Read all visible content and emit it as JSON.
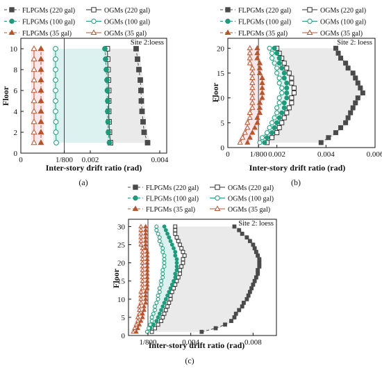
{
  "colors": {
    "flpgm_220": "#4a4a4a",
    "flpgm_100": "#1f9a7a",
    "flpgm_35": "#b5562f",
    "ogm_220": "#333333",
    "ogm_100": "#1f9a7a",
    "ogm_35": "#b5562f",
    "band_220": "#d9d9d9",
    "band_100": "#bfe8e3",
    "band_35": "#f6d3d9",
    "limit_line": "#444444"
  },
  "chart_data": [
    {
      "panel_label": "(a)",
      "type": "line",
      "site_label": "Site 2:loess",
      "xlabel": "Inter-story drift ratio (rad)",
      "ylabel": "Floor",
      "xlim": [
        0,
        0.0042
      ],
      "ylim": [
        0,
        11
      ],
      "xticks": [
        {
          "v": 0,
          "t": "0"
        },
        {
          "v": 0.00125,
          "t": "1/800"
        },
        {
          "v": 0.002,
          "t": "0.002"
        },
        {
          "v": 0.004,
          "t": "0.004"
        }
      ],
      "yticks": [
        0,
        2,
        4,
        6,
        8,
        10
      ],
      "limit_value": 0.00125,
      "limit_label": "1/800",
      "legend": [
        "FLPGMs (220 gal)",
        "OGMs (220 gal)",
        "FLPGMs (100 gal)",
        "OGMs (100 gal)",
        "FLPGMs (35 gal)",
        "OGMs (35 gal)"
      ],
      "floors": [
        1,
        2,
        3,
        4,
        5,
        6,
        7,
        8,
        9,
        10
      ],
      "series": [
        {
          "name": "FLPGMs (220 gal)",
          "key": "flpgm_220",
          "marker": "square",
          "filled": true,
          "dashed": true,
          "values": [
            0.00365,
            0.00355,
            0.00352,
            0.00349,
            0.00347,
            0.00346,
            0.00344,
            0.0034,
            0.00336,
            0.00332
          ]
        },
        {
          "name": "OGMs (220 gal)",
          "key": "ogm_220",
          "marker": "square",
          "filled": false,
          "dashed": false,
          "values": [
            0.00258,
            0.00255,
            0.00254,
            0.00253,
            0.00253,
            0.00253,
            0.00252,
            0.00251,
            0.0025,
            0.00249
          ]
        },
        {
          "name": "FLPGMs (100 gal)",
          "key": "flpgm_100",
          "marker": "circle",
          "filled": true,
          "dashed": true,
          "values": [
            0.00255,
            0.00252,
            0.00251,
            0.0025,
            0.0025,
            0.00249,
            0.00248,
            0.00246,
            0.00244,
            0.00242
          ]
        },
        {
          "name": "OGMs (100 gal)",
          "key": "ogm_100",
          "marker": "circle",
          "filled": false,
          "dashed": false,
          "values": [
            0.00102,
            0.00101,
            0.00101,
            0.001,
            0.001,
            0.001,
            0.001,
            0.001,
            0.001,
            0.001
          ]
        },
        {
          "name": "FLPGMs (35 gal)",
          "key": "flpgm_35",
          "marker": "triangle",
          "filled": true,
          "dashed": true,
          "values": [
            0.00058,
            0.00058,
            0.00058,
            0.00058,
            0.00058,
            0.00058,
            0.00058,
            0.00058,
            0.00058,
            0.00058
          ]
        },
        {
          "name": "OGMs (35 gal)",
          "key": "ogm_35",
          "marker": "triangle",
          "filled": false,
          "dashed": false,
          "values": [
            0.00038,
            0.00038,
            0.00038,
            0.00038,
            0.00038,
            0.00038,
            0.00038,
            0.00038,
            0.00038,
            0.00038
          ]
        }
      ]
    },
    {
      "panel_label": "(b)",
      "type": "line",
      "site_label": "Site 2: loess",
      "xlabel": "Inter-story drift ratio (rad)",
      "ylabel": "Floor",
      "xlim": [
        0,
        0.006
      ],
      "ylim": [
        0,
        22
      ],
      "xticks": [
        {
          "v": 0,
          "t": "0"
        },
        {
          "v": 0.00125,
          "t": "1/800"
        },
        {
          "v": 0.002,
          "t": "0.002"
        },
        {
          "v": 0.004,
          "t": "0.004"
        },
        {
          "v": 0.006,
          "t": "0.006"
        }
      ],
      "yticks": [
        0,
        5,
        10,
        15,
        20
      ],
      "limit_value": 0.00125,
      "limit_label": "1/800",
      "legend": [
        "FLPGMs (220 gal)",
        "OGMs (220 gal)",
        "FLPGMs (100 gal)",
        "OGMs (100 gal)",
        "FLPGMs (35 gal)",
        "OGMs (35 gal)"
      ],
      "floors": [
        1,
        2,
        3,
        4,
        5,
        6,
        7,
        8,
        9,
        10,
        11,
        12,
        13,
        14,
        15,
        16,
        17,
        18,
        19,
        20
      ],
      "series": [
        {
          "name": "FLPGMs (220 gal)",
          "key": "flpgm_220",
          "marker": "square",
          "filled": true,
          "dashed": true,
          "values": [
            0.0038,
            0.0041,
            0.0044,
            0.0046,
            0.0048,
            0.0049,
            0.005,
            0.0051,
            0.0052,
            0.0053,
            0.0055,
            0.0054,
            0.0053,
            0.0052,
            0.0051,
            0.0049,
            0.0048,
            0.0046,
            0.0045,
            0.0044
          ]
        },
        {
          "name": "OGMs (220 gal)",
          "key": "ogm_220",
          "marker": "square",
          "filled": false,
          "dashed": false,
          "values": [
            0.0016,
            0.0018,
            0.002,
            0.0021,
            0.0022,
            0.0023,
            0.0024,
            0.0025,
            0.0026,
            0.0026,
            0.0027,
            0.0027,
            0.0026,
            0.0026,
            0.0025,
            0.0024,
            0.0023,
            0.0022,
            0.0021,
            0.002
          ]
        },
        {
          "name": "FLPGMs (100 gal)",
          "key": "flpgm_100",
          "marker": "circle",
          "filled": true,
          "dashed": true,
          "values": [
            0.0015,
            0.0016,
            0.0018,
            0.0019,
            0.002,
            0.0021,
            0.0022,
            0.0023,
            0.0023,
            0.0024,
            0.0024,
            0.0024,
            0.0024,
            0.0023,
            0.0023,
            0.0022,
            0.0021,
            0.0021,
            0.002,
            0.0019
          ]
        },
        {
          "name": "OGMs (100 gal)",
          "key": "ogm_100",
          "marker": "circle",
          "filled": false,
          "dashed": false,
          "values": [
            0.0013,
            0.0014,
            0.0016,
            0.0017,
            0.0018,
            0.0019,
            0.002,
            0.002,
            0.0021,
            0.0021,
            0.0022,
            0.0022,
            0.0021,
            0.0021,
            0.002,
            0.002,
            0.0019,
            0.0018,
            0.0018,
            0.0017
          ]
        },
        {
          "name": "FLPGMs (35 gal)",
          "key": "flpgm_35",
          "marker": "triangle",
          "filled": true,
          "dashed": true,
          "values": [
            0.0008,
            0.0009,
            0.001,
            0.0011,
            0.0012,
            0.0012,
            0.0013,
            0.0013,
            0.0013,
            0.0014,
            0.0014,
            0.0014,
            0.0014,
            0.0014,
            0.0013,
            0.0013,
            0.0013,
            0.0012,
            0.0012,
            0.0012
          ]
        },
        {
          "name": "OGMs (35 gal)",
          "key": "ogm_35",
          "marker": "triangle",
          "filled": false,
          "dashed": false,
          "values": [
            0.0005,
            0.0006,
            0.0007,
            0.0008,
            0.0008,
            0.0009,
            0.0009,
            0.001,
            0.001,
            0.001,
            0.001,
            0.001,
            0.001,
            0.001,
            0.001,
            0.001,
            0.0009,
            0.0009,
            0.0009,
            0.0009
          ]
        }
      ]
    },
    {
      "panel_label": "(c)",
      "type": "line",
      "site_label": "Site 2: loess",
      "xlabel": "Inter-story drift ratio (rad)",
      "ylabel": "Floor",
      "xlim": [
        0,
        0.0095
      ],
      "ylim": [
        0,
        32
      ],
      "xticks": [
        {
          "v": 0.00125,
          "t": "1/800"
        },
        {
          "v": 0.004,
          "t": "0.004"
        },
        {
          "v": 0.008,
          "t": "0.008"
        }
      ],
      "yticks": [
        0,
        5,
        10,
        15,
        20,
        25,
        30
      ],
      "limit_value": 0.00125,
      "limit_label": "1/800",
      "legend": [
        "FLPGMs (220 gal)",
        "OGMs (220 gal)",
        "FLPGMs (100 gal)",
        "OGMs (100 gal)",
        "FLPGMs (35 gal)",
        "OGMs (35 gal)"
      ],
      "floors": [
        1,
        2,
        3,
        4,
        5,
        6,
        7,
        8,
        9,
        10,
        11,
        12,
        13,
        14,
        15,
        16,
        17,
        18,
        19,
        20,
        21,
        22,
        23,
        24,
        25,
        26,
        27,
        28,
        29,
        30
      ],
      "series": [
        {
          "name": "FLPGMs (220 gal)",
          "key": "flpgm_220",
          "marker": "square",
          "filled": true,
          "dashed": true,
          "values": [
            0.0047,
            0.0056,
            0.0062,
            0.0066,
            0.0068,
            0.0069,
            0.0071,
            0.0073,
            0.0074,
            0.0076,
            0.0077,
            0.0078,
            0.0079,
            0.008,
            0.0081,
            0.0082,
            0.0083,
            0.0083,
            0.0084,
            0.0084,
            0.0084,
            0.0083,
            0.0082,
            0.0081,
            0.008,
            0.0078,
            0.0076,
            0.0073,
            0.0071,
            0.0068
          ]
        },
        {
          "name": "OGMs (220 gal)",
          "key": "ogm_220",
          "marker": "square",
          "filled": false,
          "dashed": false,
          "values": [
            0.0015,
            0.0017,
            0.0019,
            0.0021,
            0.0022,
            0.0023,
            0.0024,
            0.0025,
            0.0026,
            0.0027,
            0.0027,
            0.0028,
            0.0029,
            0.003,
            0.0031,
            0.0032,
            0.0033,
            0.0033,
            0.0034,
            0.0035,
            0.0035,
            0.0036,
            0.0035,
            0.0034,
            0.0033,
            0.0032,
            0.0031,
            0.003,
            0.003,
            0.003
          ]
        },
        {
          "name": "FLPGMs (100 gal)",
          "key": "flpgm_100",
          "marker": "circle",
          "filled": true,
          "dashed": true,
          "values": [
            0.0012,
            0.0014,
            0.0016,
            0.0018,
            0.0019,
            0.002,
            0.0021,
            0.0022,
            0.0023,
            0.0024,
            0.0025,
            0.0026,
            0.0027,
            0.0028,
            0.0029,
            0.003,
            0.003,
            0.0031,
            0.0031,
            0.0031,
            0.0031,
            0.003,
            0.003,
            0.0029,
            0.0028,
            0.0027,
            0.0026,
            0.0025,
            0.0024,
            0.0023
          ]
        },
        {
          "name": "OGMs (100 gal)",
          "key": "ogm_100",
          "marker": "circle",
          "filled": false,
          "dashed": false,
          "values": [
            0.0012,
            0.0013,
            0.0014,
            0.0015,
            0.0015,
            0.0016,
            0.0017,
            0.0017,
            0.0018,
            0.0019,
            0.0019,
            0.002,
            0.002,
            0.0021,
            0.0021,
            0.0022,
            0.0022,
            0.0022,
            0.0023,
            0.0023,
            0.0023,
            0.0023,
            0.0022,
            0.0022,
            0.0021,
            0.002,
            0.002,
            0.0019,
            0.0018,
            0.0018
          ]
        },
        {
          "name": "FLPGMs (35 gal)",
          "key": "flpgm_35",
          "marker": "triangle",
          "filled": true,
          "dashed": true,
          "values": [
            0.0005,
            0.0006,
            0.0007,
            0.0008,
            0.0009,
            0.0009,
            0.001,
            0.001,
            0.0011,
            0.0011,
            0.0011,
            0.0011,
            0.0012,
            0.0012,
            0.0012,
            0.0012,
            0.0012,
            0.0012,
            0.0012,
            0.0012,
            0.0012,
            0.0012,
            0.0012,
            0.0011,
            0.0011,
            0.0011,
            0.0011,
            0.0011,
            0.0011,
            0.0011
          ]
        },
        {
          "name": "OGMs (35 gal)",
          "key": "ogm_35",
          "marker": "triangle",
          "filled": false,
          "dashed": false,
          "values": [
            0.0003,
            0.0004,
            0.0005,
            0.0006,
            0.0006,
            0.0007,
            0.0007,
            0.0007,
            0.0008,
            0.0008,
            0.0008,
            0.0008,
            0.0009,
            0.0009,
            0.0009,
            0.0009,
            0.0009,
            0.0009,
            0.0009,
            0.0009,
            0.0009,
            0.0009,
            0.0009,
            0.0009,
            0.0008,
            0.0008,
            0.0008,
            0.0008,
            0.0008,
            0.0008
          ]
        }
      ]
    }
  ]
}
